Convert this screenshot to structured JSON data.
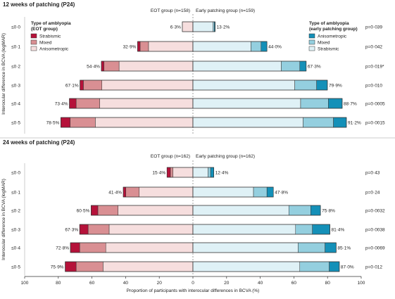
{
  "colors": {
    "eot": {
      "Strabismic": "#b5123a",
      "Mixed": "#d98f93",
      "Anisometropic": "#f6dede"
    },
    "early": {
      "Anisometropic": "#1490b8",
      "Mixed": "#94cfdf",
      "Strabismic": "#dff1f6"
    },
    "stroke": "#333333",
    "text": "#222222",
    "dashed": "#888888"
  },
  "y_axis_label": "Interocular difference in BCVA (logMAR)",
  "chart_data": [
    {
      "type": "bar",
      "title": "12 weeks of patching (P24)",
      "eot_header": "EOT group (n=158)",
      "early_header": "Early patching group (n=159)",
      "legend_left": {
        "title_line1": "Type of amblyopia",
        "title_line2": "(EOT group)",
        "items": [
          "Strabismic",
          "Mixed",
          "Anisometropic"
        ]
      },
      "legend_right": {
        "title_line1": "Type of amblyopia",
        "title_line2": "(early patching group)",
        "items": [
          "Anisometropic",
          "Mixed",
          "Strabismic"
        ]
      },
      "categories": [
        "≤0·0",
        "≤0·1",
        "≤0·2",
        "≤0·3",
        "≤0·4",
        "≤0·5"
      ],
      "eot_totals": [
        6.3,
        32.9,
        54.4,
        67.1,
        73.4,
        78.5
      ],
      "eot_total_labels": [
        "6·3%",
        "32·9%",
        "54·4%",
        "67·1%",
        "73·4%",
        "78·5%"
      ],
      "eot_series": [
        {
          "name": "Strabismic",
          "values": [
            0.0,
            1.5,
            1.5,
            2.0,
            4.0,
            5.5
          ]
        },
        {
          "name": "Mixed",
          "values": [
            0.0,
            5.0,
            9.0,
            11.0,
            14.0,
            15.0
          ]
        },
        {
          "name": "Anisometropic",
          "values": [
            6.3,
            26.4,
            43.9,
            54.1,
            55.4,
            58.0
          ]
        }
      ],
      "early_totals": [
        13.2,
        44.0,
        67.3,
        79.9,
        88.7,
        91.2
      ],
      "early_total_labels": [
        "13·2%",
        "44·0%",
        "67·3%",
        "79·9%",
        "88·7%",
        "91·2%"
      ],
      "early_series": [
        {
          "name": "Strabismic",
          "values": [
            12.0,
            34.5,
            52.5,
            60.5,
            64.0,
            65.5
          ]
        },
        {
          "name": "Mixed",
          "values": [
            0.7,
            6.0,
            11.0,
            13.0,
            16.5,
            18.0
          ]
        },
        {
          "name": "Anisometropic",
          "values": [
            0.5,
            3.5,
            3.8,
            6.4,
            8.2,
            7.7
          ]
        }
      ],
      "p_values": [
        "p=0·039",
        "p=0·042",
        "p=0·019*",
        "p=0·010",
        "p=0·0005",
        "p=0·0015"
      ],
      "xlim": [
        -100,
        100
      ]
    },
    {
      "type": "bar",
      "title": "24 weeks of patching (P24)",
      "eot_header": "EOT group (n=162)",
      "early_header": "Early patching group (n=162)",
      "categories": [
        "≤0·0",
        "≤0·1",
        "≤0·2",
        "≤0·3",
        "≤0·4",
        "≤0·5"
      ],
      "eot_totals": [
        15.4,
        41.4,
        60.5,
        67.3,
        72.8,
        75.9
      ],
      "eot_total_labels": [
        "15·4%",
        "41·4%",
        "60·5%",
        "67·3%",
        "72·8%",
        "75·9%"
      ],
      "eot_series": [
        {
          "name": "Strabismic",
          "values": [
            2.0,
            1.5,
            4.0,
            5.0,
            5.5,
            6.5
          ]
        },
        {
          "name": "Mixed",
          "values": [
            1.5,
            8.0,
            12.0,
            12.5,
            15.5,
            16.0
          ]
        },
        {
          "name": "Anisometropic",
          "values": [
            11.9,
            31.9,
            44.5,
            49.8,
            51.8,
            53.4
          ]
        }
      ],
      "early_totals": [
        12.4,
        47.8,
        75.8,
        81.4,
        85.1,
        87.0
      ],
      "early_total_labels": [
        "12·4%",
        "47·8%",
        "75·8%",
        "81·4%",
        "85·1%",
        "87·0%"
      ],
      "early_series": [
        {
          "name": "Strabismic",
          "values": [
            9.0,
            36.0,
            57.0,
            61.0,
            62.5,
            63.5
          ]
        },
        {
          "name": "Mixed",
          "values": [
            1.5,
            8.0,
            13.0,
            10.0,
            16.0,
            17.5
          ]
        },
        {
          "name": "Anisometropic",
          "values": [
            1.9,
            3.8,
            5.8,
            10.4,
            6.6,
            6.0
          ]
        }
      ],
      "p_values": [
        "p=0·43",
        "p=0·24",
        "p=0·0032",
        "p=0·0038",
        "p=0·0069",
        "p=0·012"
      ],
      "xlim": [
        -100,
        100
      ]
    }
  ],
  "x_axis": {
    "ticks": [
      -100,
      -80,
      -60,
      -40,
      -20,
      0,
      20,
      40,
      60,
      80,
      100
    ],
    "tick_labels": [
      "100",
      "80",
      "60",
      "40",
      "20",
      "0",
      "20",
      "40",
      "60",
      "80",
      "100"
    ],
    "label": "Proportion of participants with interocular differences in BCVA (%)"
  }
}
